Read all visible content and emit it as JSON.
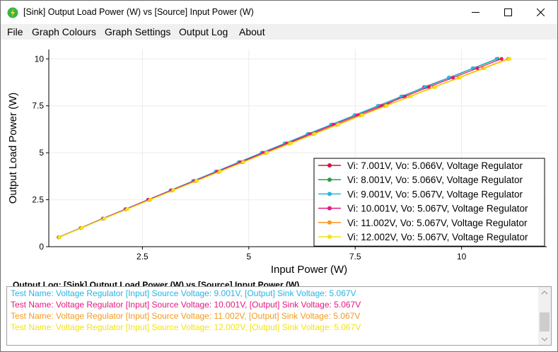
{
  "window": {
    "title": "[Sink] Output Load Power (W) vs [Source] Input Power (W)"
  },
  "menu": {
    "items": [
      "File",
      "Graph Colours",
      "Graph Settings",
      "Output Log",
      "About"
    ]
  },
  "chart_data": {
    "type": "line",
    "title": "",
    "xlabel": "Input Power (W)",
    "ylabel": "Output Load Power (W)",
    "xlim": [
      0.3,
      12.0
    ],
    "ylim": [
      0,
      10.5
    ],
    "x_ticks": [
      2.5,
      5,
      7.5,
      10
    ],
    "x_tick_labels": [
      "2.5",
      "5",
      "7.5",
      "10"
    ],
    "y_ticks": [
      0,
      2.5,
      5,
      7.5,
      10
    ],
    "y_tick_labels": [
      "0",
      "2.5",
      "5",
      "7.5",
      "10"
    ],
    "grid": true,
    "legend_position": "bottom-right",
    "y_values": [
      0.5,
      1.0,
      1.5,
      2.0,
      2.5,
      3.0,
      3.5,
      4.0,
      4.5,
      5.0,
      5.5,
      6.0,
      6.5,
      7.0,
      7.5,
      8.0,
      8.5,
      9.0,
      9.5,
      10.0
    ],
    "series": [
      {
        "name": "Vi: 7.001V, Vo: 5.066V, Voltage Regulator",
        "color": "#d6143c",
        "x": [
          0.55,
          1.07,
          1.6,
          2.13,
          2.67,
          3.21,
          3.75,
          4.29,
          4.84,
          5.39,
          5.94,
          6.5,
          7.06,
          7.62,
          8.18,
          8.62,
          9.12,
          9.7,
          10.27,
          10.85
        ]
      },
      {
        "name": "Vi: 8.001V, Vo: 5.066V, Voltage Regulator",
        "color": "#2e9c4a",
        "x": [
          0.53,
          1.05,
          1.57,
          2.1,
          2.63,
          3.16,
          3.69,
          4.23,
          4.77,
          5.31,
          5.85,
          6.4,
          6.95,
          7.5,
          8.05,
          8.6,
          9.16,
          9.72,
          10.28,
          10.85
        ]
      },
      {
        "name": "Vi: 9.001V, Vo: 5.067V, Voltage Regulator",
        "color": "#27b5e0",
        "x": [
          0.53,
          1.05,
          1.57,
          2.1,
          2.63,
          3.16,
          3.69,
          4.22,
          4.76,
          5.3,
          5.84,
          6.38,
          6.93,
          7.48,
          8.03,
          8.58,
          9.14,
          9.7,
          10.26,
          10.82
        ]
      },
      {
        "name": "Vi: 10.001V, Vo: 5.067V, Voltage Regulator",
        "color": "#e6177e",
        "x": [
          0.53,
          1.06,
          1.58,
          2.11,
          2.64,
          3.18,
          3.72,
          4.26,
          4.8,
          5.34,
          5.89,
          6.44,
          6.99,
          7.55,
          8.11,
          8.67,
          9.23,
          9.8,
          10.37,
          10.94
        ]
      },
      {
        "name": "Vi: 11.002V, Vo: 5.067V, Voltage Regulator",
        "color": "#f59a1b",
        "x": [
          0.54,
          1.07,
          1.6,
          2.14,
          2.68,
          3.22,
          3.76,
          4.31,
          4.86,
          5.41,
          5.96,
          6.52,
          7.08,
          7.64,
          8.21,
          8.78,
          9.35,
          9.93,
          10.5,
          11.09
        ]
      },
      {
        "name": "Vi: 12.002V, Vo: 5.067V, Voltage Regulator",
        "color": "#f5e20f",
        "x": [
          0.55,
          1.08,
          1.61,
          2.15,
          2.69,
          3.23,
          3.78,
          4.33,
          4.88,
          5.43,
          5.99,
          6.55,
          7.11,
          7.67,
          8.24,
          8.81,
          9.38,
          9.96,
          10.54,
          11.13
        ]
      }
    ]
  },
  "log": {
    "title": "Output Log: [Sink] Output Load Power (W) vs [Source] Input Power (W)",
    "lines": [
      {
        "text": "Test Name: Voltage Regulator [Input] Source Voltage: 9.001V, [Output] Sink Voltage: 5.067V",
        "color": "#27b5e0"
      },
      {
        "text": "Test Name: Voltage Regulator [Input] Source Voltage: 10.001V, [Output] Sink Voltage: 5.067V",
        "color": "#e6177e"
      },
      {
        "text": "Test Name: Voltage Regulator [Input] Source Voltage: 11.002V, [Output] Sink Voltage: 5.067V",
        "color": "#f59a1b"
      },
      {
        "text": "Test Name: Voltage Regulator [Input] Source Voltage: 12.002V, [Output] Sink Voltage: 5.067V",
        "color": "#f5e20f"
      }
    ]
  },
  "icons": {
    "app": "lightning-bolt-icon",
    "minimize": "minimize-icon",
    "maximize": "maximize-icon",
    "close": "close-icon"
  }
}
